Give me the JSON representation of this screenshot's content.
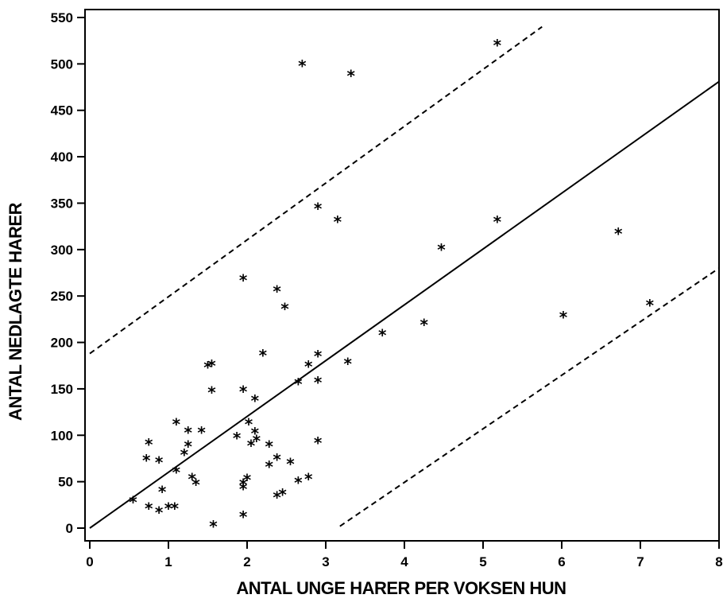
{
  "chart_data": {
    "type": "scatter",
    "title": "",
    "xlabel": "ANTAL UNGE HARER PER VOKSEN HUN",
    "ylabel": "ANTAL NEDLAGTE HARER",
    "xlim": [
      0,
      8
    ],
    "ylim": [
      0,
      550
    ],
    "xticks": [
      0,
      1,
      2,
      3,
      4,
      5,
      6,
      7,
      8
    ],
    "yticks": [
      0,
      50,
      100,
      150,
      200,
      250,
      300,
      350,
      400,
      450,
      500,
      550
    ],
    "grid": false,
    "marker": "*",
    "points": [
      {
        "x": 0.55,
        "y": 33
      },
      {
        "x": 0.72,
        "y": 78
      },
      {
        "x": 0.75,
        "y": 95
      },
      {
        "x": 0.75,
        "y": 26
      },
      {
        "x": 0.88,
        "y": 22
      },
      {
        "x": 0.88,
        "y": 76
      },
      {
        "x": 0.92,
        "y": 44
      },
      {
        "x": 1.0,
        "y": 26
      },
      {
        "x": 1.08,
        "y": 26
      },
      {
        "x": 1.1,
        "y": 65
      },
      {
        "x": 1.1,
        "y": 117
      },
      {
        "x": 1.2,
        "y": 84
      },
      {
        "x": 1.25,
        "y": 108
      },
      {
        "x": 1.25,
        "y": 93
      },
      {
        "x": 1.3,
        "y": 58
      },
      {
        "x": 1.35,
        "y": 52
      },
      {
        "x": 1.42,
        "y": 108
      },
      {
        "x": 1.5,
        "y": 178
      },
      {
        "x": 1.55,
        "y": 180
      },
      {
        "x": 1.55,
        "y": 151
      },
      {
        "x": 1.57,
        "y": 7
      },
      {
        "x": 1.87,
        "y": 102
      },
      {
        "x": 1.95,
        "y": 272
      },
      {
        "x": 1.95,
        "y": 152
      },
      {
        "x": 1.95,
        "y": 52
      },
      {
        "x": 1.95,
        "y": 47
      },
      {
        "x": 1.95,
        "y": 17
      },
      {
        "x": 2.0,
        "y": 57
      },
      {
        "x": 2.02,
        "y": 117
      },
      {
        "x": 2.05,
        "y": 94
      },
      {
        "x": 2.1,
        "y": 142
      },
      {
        "x": 2.1,
        "y": 107
      },
      {
        "x": 2.12,
        "y": 99
      },
      {
        "x": 2.2,
        "y": 191
      },
      {
        "x": 2.28,
        "y": 93
      },
      {
        "x": 2.28,
        "y": 71
      },
      {
        "x": 2.38,
        "y": 79
      },
      {
        "x": 2.38,
        "y": 260
      },
      {
        "x": 2.38,
        "y": 38
      },
      {
        "x": 2.45,
        "y": 41
      },
      {
        "x": 2.48,
        "y": 241
      },
      {
        "x": 2.55,
        "y": 74
      },
      {
        "x": 2.65,
        "y": 160
      },
      {
        "x": 2.65,
        "y": 54
      },
      {
        "x": 2.7,
        "y": 503
      },
      {
        "x": 2.78,
        "y": 179
      },
      {
        "x": 2.78,
        "y": 58
      },
      {
        "x": 2.9,
        "y": 190
      },
      {
        "x": 2.9,
        "y": 162
      },
      {
        "x": 2.9,
        "y": 97
      },
      {
        "x": 2.9,
        "y": 349
      },
      {
        "x": 3.15,
        "y": 335
      },
      {
        "x": 3.28,
        "y": 182
      },
      {
        "x": 3.32,
        "y": 492
      },
      {
        "x": 3.72,
        "y": 213
      },
      {
        "x": 4.25,
        "y": 224
      },
      {
        "x": 4.47,
        "y": 305
      },
      {
        "x": 5.18,
        "y": 335
      },
      {
        "x": 5.18,
        "y": 525
      },
      {
        "x": 6.02,
        "y": 232
      },
      {
        "x": 6.72,
        "y": 322
      },
      {
        "x": 7.12,
        "y": 245
      }
    ],
    "lines": [
      {
        "style": "solid",
        "x": [
          0,
          8
        ],
        "y": [
          0,
          481
        ]
      },
      {
        "style": "dashed",
        "x": [
          0,
          5.75
        ],
        "y": [
          188,
          540
        ]
      },
      {
        "style": "dashed",
        "x": [
          3.18,
          8
        ],
        "y": [
          2,
          280
        ]
      }
    ]
  }
}
